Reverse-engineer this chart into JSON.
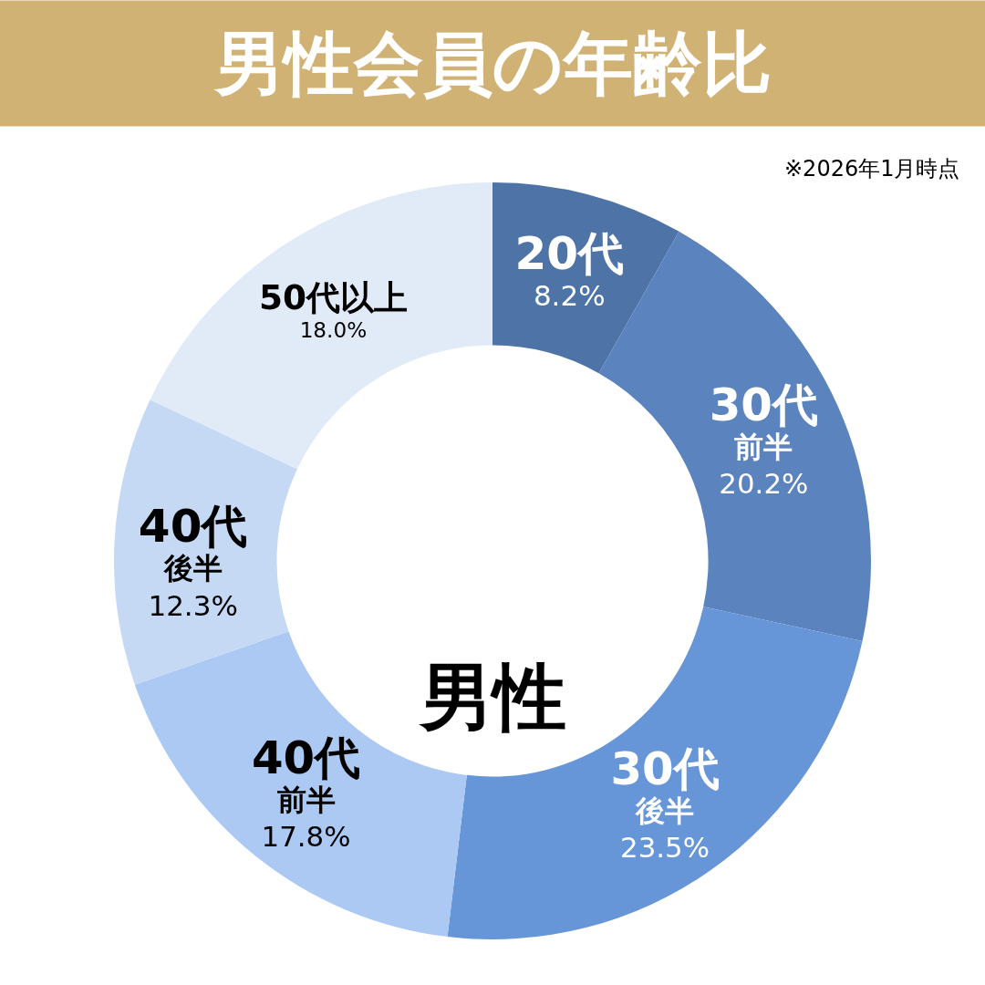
{
  "chart_data": {
    "type": "donut",
    "title": "男性会員の年齢比",
    "categories": [
      "20代",
      "30代前半",
      "30代後半",
      "40代前半",
      "40代後半",
      "50代以上"
    ],
    "values": [
      8.2,
      20.2,
      23.5,
      17.8,
      12.3,
      18.0
    ],
    "value_labels": [
      "8.2%",
      "20.2%",
      "23.5%",
      "17.8%",
      "12.3%",
      "18.0%"
    ],
    "colors": [
      "#4e73a6",
      "#5b83be",
      "#6796d8",
      "#abc9f3",
      "#c5d9f4",
      "#e1ebf8"
    ],
    "annotations": [
      "※2026年1月時点",
      "男性"
    ]
  }
}
